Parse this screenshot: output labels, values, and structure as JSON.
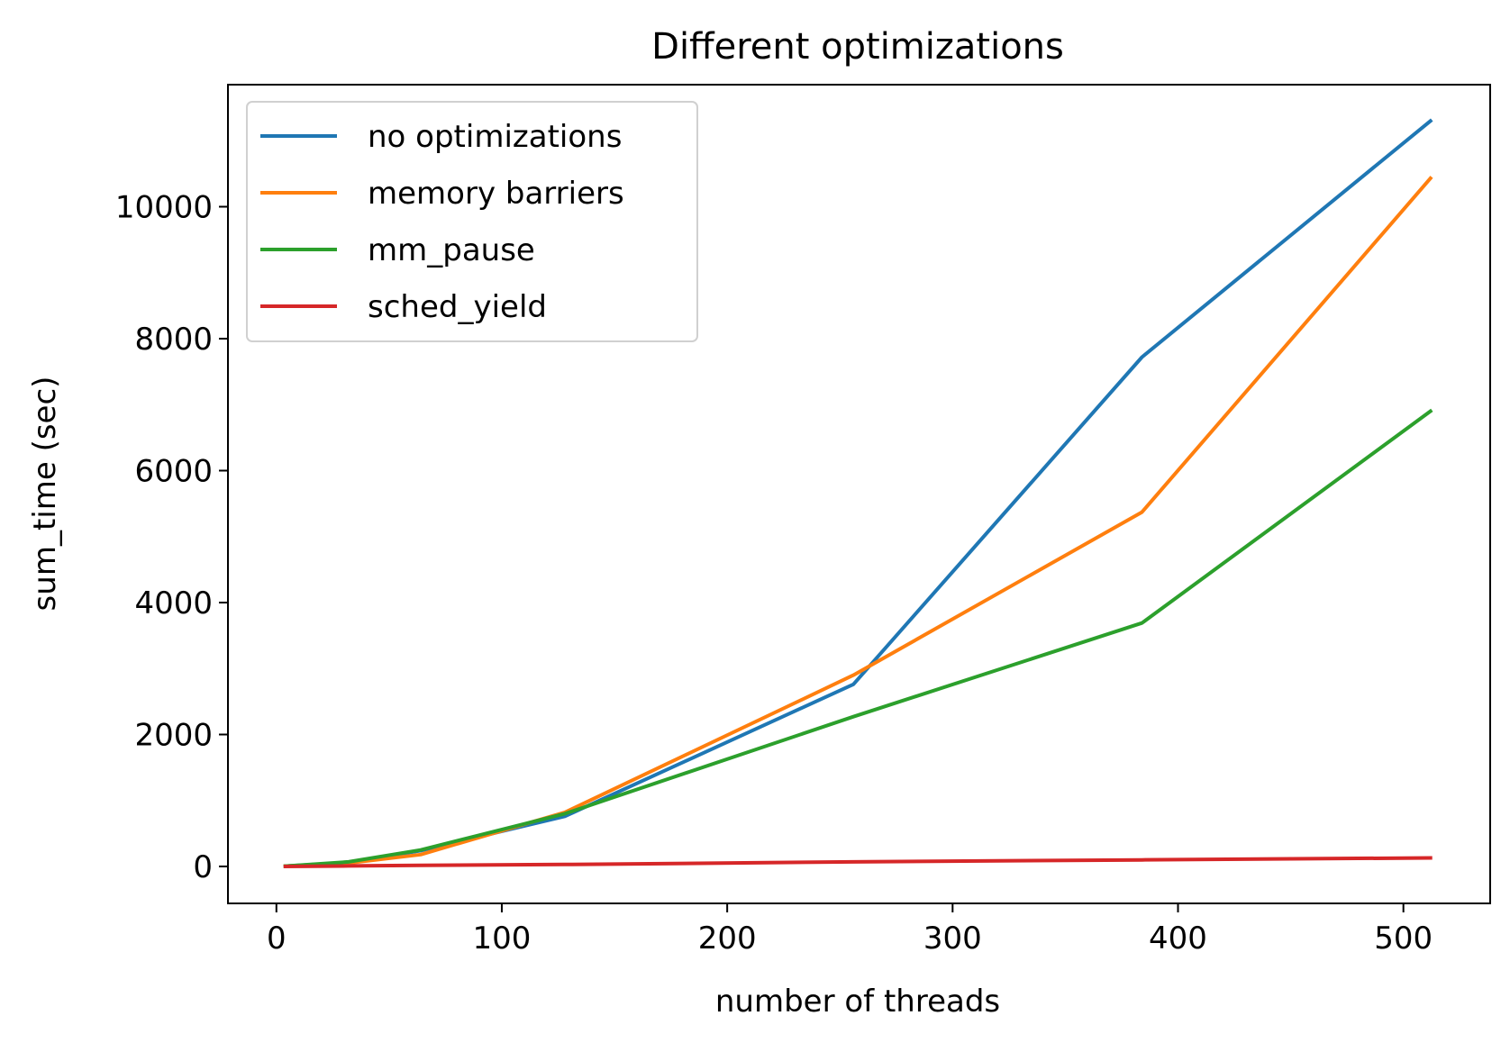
{
  "chart_data": {
    "type": "line",
    "title": "Different optimizations",
    "xlabel": "number of threads",
    "ylabel": "sum_time (sec)",
    "xlim": [
      -21.5,
      538.5
    ],
    "ylim": [
      -560,
      11850
    ],
    "xticks": [
      0,
      100,
      200,
      300,
      400,
      500
    ],
    "yticks": [
      0,
      2000,
      4000,
      6000,
      8000,
      10000
    ],
    "grid": false,
    "legend_position": "top-left",
    "x": [
      4,
      32,
      64,
      128,
      256,
      384,
      512
    ],
    "series": [
      {
        "name": "no optimizations",
        "color": "#1f77b4",
        "values": [
          5,
          60,
          240,
          760,
          2760,
          7720,
          11300
        ]
      },
      {
        "name": "memory barriers",
        "color": "#ff7f0e",
        "values": [
          5,
          50,
          180,
          820,
          2900,
          5370,
          10430
        ]
      },
      {
        "name": "mm_pause",
        "color": "#2ca02c",
        "values": [
          5,
          70,
          250,
          800,
          2270,
          3690,
          6900
        ]
      },
      {
        "name": "sched_yield",
        "color": "#d62728",
        "values": [
          0,
          8,
          16,
          30,
          70,
          100,
          130
        ]
      }
    ]
  }
}
